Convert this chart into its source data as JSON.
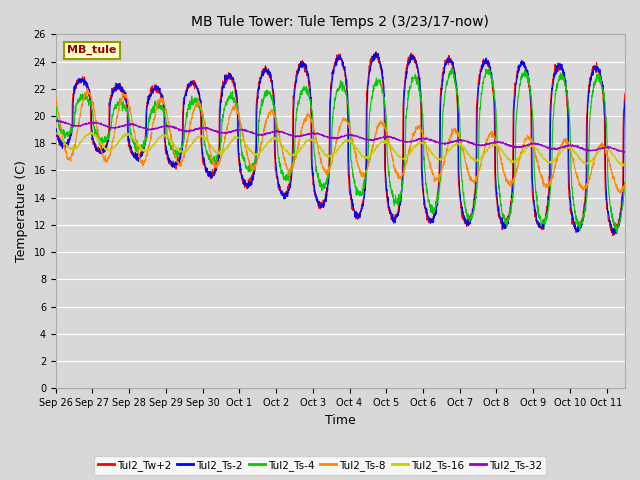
{
  "title": "MB Tule Tower: Tule Temps 2 (3/23/17-now)",
  "xlabel": "Time",
  "ylabel": "Temperature (C)",
  "ylim": [
    0,
    26
  ],
  "yticks": [
    0,
    2,
    4,
    6,
    8,
    10,
    12,
    14,
    16,
    18,
    20,
    22,
    24,
    26
  ],
  "x_tick_labels": [
    "Sep 26",
    "Sep 27",
    "Sep 28",
    "Sep 29",
    "Sep 30",
    "Oct 1",
    "Oct 2",
    "Oct 3",
    "Oct 4",
    "Oct 5",
    "Oct 6",
    "Oct 7",
    "Oct 8",
    "Oct 9",
    "Oct 10",
    "Oct 11"
  ],
  "background_color": "#d8d8d8",
  "plot_bg_color": "#d8d8d8",
  "grid_color": "#ffffff",
  "series_colors": [
    "#ff0000",
    "#0000ff",
    "#00cc00",
    "#ff8800",
    "#cccc00",
    "#9900cc"
  ],
  "series_labels": [
    "Tul2_Tw+2",
    "Tul2_Ts-2",
    "Tul2_Ts-4",
    "Tul2_Ts-8",
    "Tul2_Ts-16",
    "Tul2_Ts-32"
  ],
  "legend_box_color": "#ffffcc",
  "legend_box_edge": "#999900",
  "legend_label": "MB_tule",
  "num_days": 15.5,
  "pts_per_day": 144
}
